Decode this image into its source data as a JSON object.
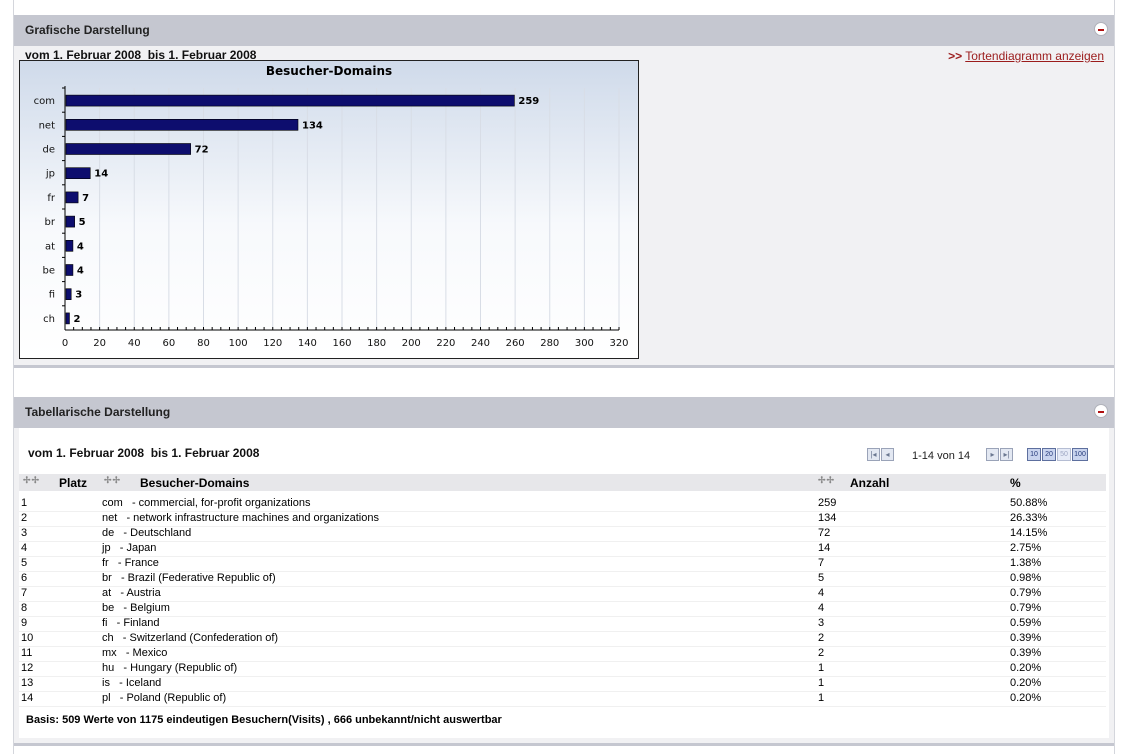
{
  "graphic_panel": {
    "title": "Grafische Darstellung",
    "date_range": "vom 1. Februar 2008  bis 1. Februar 2008",
    "pie_link_arrow": ">>",
    "pie_link_label": "Tortendiagramm anzeigen"
  },
  "chart_data": {
    "type": "bar",
    "title": "Besucher-Domains",
    "orientation": "horizontal",
    "categories": [
      "com",
      "net",
      "de",
      "jp",
      "fr",
      "br",
      "at",
      "be",
      "fi",
      "ch"
    ],
    "values": [
      259,
      134,
      72,
      14,
      7,
      5,
      4,
      4,
      3,
      2
    ],
    "xlim": [
      0,
      320
    ],
    "x_ticks": [
      0,
      20,
      40,
      60,
      80,
      100,
      120,
      140,
      160,
      180,
      200,
      220,
      240,
      260,
      280,
      300,
      320
    ],
    "grid": true,
    "bar_color": "#0d0d6e"
  },
  "table_panel": {
    "title": "Tabellarische Darstellung",
    "date_range": "vom 1. Februar 2008  bis 1. Februar 2008",
    "pager_text": "1-14 von 14",
    "page_sizes": [
      "10",
      "20",
      "50",
      "100"
    ],
    "columns": [
      "Platz",
      "Besucher-Domains",
      "Anzahl",
      "%"
    ],
    "rows": [
      {
        "rank": "1",
        "domain": "com   - commercial, for-profit organizations",
        "count": "259",
        "pct": "50.88%"
      },
      {
        "rank": "2",
        "domain": "net   - network infrastructure machines and organizations",
        "count": "134",
        "pct": "26.33%"
      },
      {
        "rank": "3",
        "domain": "de   - Deutschland",
        "count": "72",
        "pct": "14.15%"
      },
      {
        "rank": "4",
        "domain": "jp   - Japan",
        "count": "14",
        "pct": "2.75%"
      },
      {
        "rank": "5",
        "domain": "fr   - France",
        "count": "7",
        "pct": "1.38%"
      },
      {
        "rank": "6",
        "domain": "br   - Brazil (Federative Republic of)",
        "count": "5",
        "pct": "0.98%"
      },
      {
        "rank": "7",
        "domain": "at   - Austria",
        "count": "4",
        "pct": "0.79%"
      },
      {
        "rank": "8",
        "domain": "be   - Belgium",
        "count": "4",
        "pct": "0.79%"
      },
      {
        "rank": "9",
        "domain": "fi   - Finland",
        "count": "3",
        "pct": "0.59%"
      },
      {
        "rank": "10",
        "domain": "ch   - Switzerland (Confederation of)",
        "count": "2",
        "pct": "0.39%"
      },
      {
        "rank": "11",
        "domain": "mx   - Mexico",
        "count": "2",
        "pct": "0.39%"
      },
      {
        "rank": "12",
        "domain": "hu   - Hungary (Republic of)",
        "count": "1",
        "pct": "0.20%"
      },
      {
        "rank": "13",
        "domain": "is   - Iceland",
        "count": "1",
        "pct": "0.20%"
      },
      {
        "rank": "14",
        "domain": "pl   - Poland (Republic of)",
        "count": "1",
        "pct": "0.20%"
      }
    ],
    "basis": "Basis: 509 Werte von 1175 eindeutigen Besuchern(Visits) , 666 unbekannt/nicht auswertbar"
  }
}
